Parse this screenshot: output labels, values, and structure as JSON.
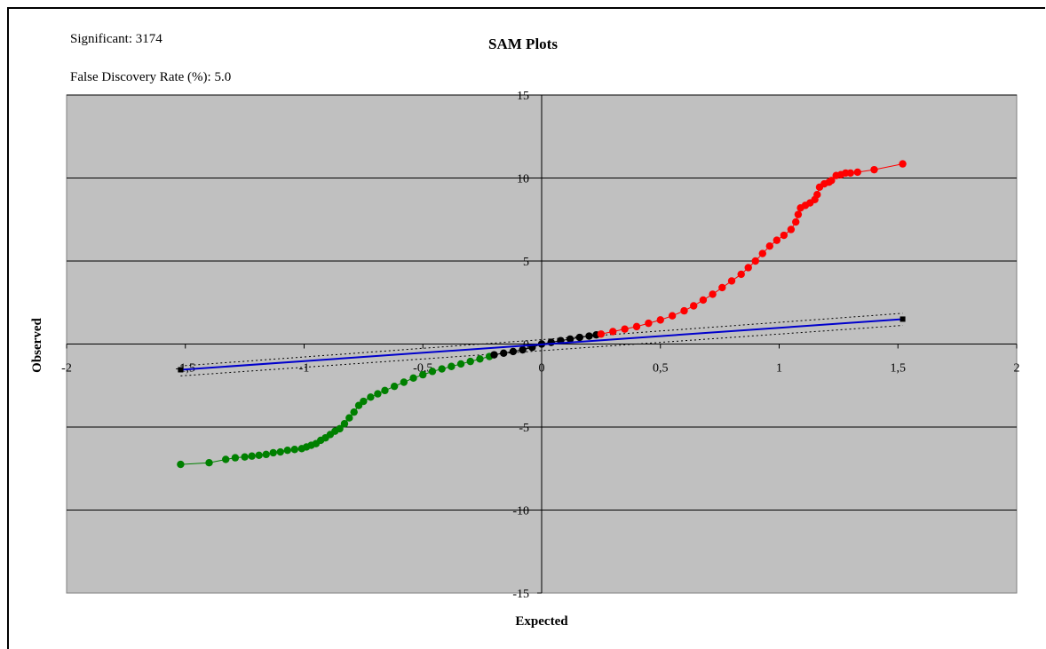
{
  "info": {
    "significant": "Significant: 3174",
    "fdr": "False Discovery Rate (%): 5.0"
  },
  "chart_data": {
    "type": "scatter",
    "title": "SAM Plots",
    "xlabel": "Expected",
    "ylabel": "Observed",
    "xlim": [
      -2,
      2
    ],
    "ylim": [
      -15,
      15
    ],
    "x_ticks": [
      "-2",
      "-1,5",
      "-1",
      "-0,5",
      "0",
      "0,5",
      "1",
      "1,5",
      "2"
    ],
    "y_ticks": [
      "15",
      "10",
      "5",
      "0",
      "-5",
      "-10",
      "-15"
    ],
    "grid": "horizontal",
    "background": "#c0c0c0",
    "series": [
      {
        "color": "#008000",
        "points": [
          [
            -1.52,
            -7.25
          ],
          [
            -1.4,
            -7.15
          ],
          [
            -1.33,
            -6.95
          ],
          [
            -1.29,
            -6.85
          ],
          [
            -1.25,
            -6.8
          ],
          [
            -1.22,
            -6.75
          ],
          [
            -1.19,
            -6.7
          ],
          [
            -1.16,
            -6.65
          ],
          [
            -1.13,
            -6.55
          ],
          [
            -1.1,
            -6.5
          ],
          [
            -1.07,
            -6.4
          ],
          [
            -1.04,
            -6.35
          ],
          [
            -1.01,
            -6.3
          ],
          [
            -0.99,
            -6.2
          ],
          [
            -0.97,
            -6.1
          ],
          [
            -0.95,
            -6.0
          ],
          [
            -0.93,
            -5.8
          ],
          [
            -0.91,
            -5.65
          ],
          [
            -0.89,
            -5.45
          ],
          [
            -0.87,
            -5.25
          ],
          [
            -0.85,
            -5.1
          ],
          [
            -0.83,
            -4.8
          ],
          [
            -0.81,
            -4.45
          ],
          [
            -0.79,
            -4.1
          ],
          [
            -0.77,
            -3.7
          ],
          [
            -0.75,
            -3.45
          ],
          [
            -0.72,
            -3.2
          ],
          [
            -0.69,
            -3.0
          ],
          [
            -0.66,
            -2.8
          ],
          [
            -0.62,
            -2.55
          ],
          [
            -0.58,
            -2.3
          ],
          [
            -0.54,
            -2.05
          ],
          [
            -0.5,
            -1.85
          ],
          [
            -0.46,
            -1.65
          ],
          [
            -0.42,
            -1.5
          ],
          [
            -0.38,
            -1.35
          ],
          [
            -0.34,
            -1.2
          ],
          [
            -0.3,
            -1.05
          ],
          [
            -0.26,
            -0.9
          ],
          [
            -0.22,
            -0.75
          ]
        ]
      },
      {
        "color": "#000000",
        "points": [
          [
            -0.2,
            -0.65
          ],
          [
            -0.16,
            -0.55
          ],
          [
            -0.12,
            -0.45
          ],
          [
            -0.08,
            -0.35
          ],
          [
            -0.04,
            -0.2
          ],
          [
            0.0,
            0.0
          ],
          [
            0.04,
            0.1
          ],
          [
            0.08,
            0.2
          ],
          [
            0.12,
            0.3
          ],
          [
            0.16,
            0.4
          ],
          [
            0.2,
            0.48
          ],
          [
            0.23,
            0.55
          ]
        ]
      },
      {
        "color": "#ff0000",
        "points": [
          [
            0.25,
            0.6
          ],
          [
            0.3,
            0.75
          ],
          [
            0.35,
            0.9
          ],
          [
            0.4,
            1.05
          ],
          [
            0.45,
            1.25
          ],
          [
            0.5,
            1.45
          ],
          [
            0.55,
            1.7
          ],
          [
            0.6,
            2.0
          ],
          [
            0.64,
            2.3
          ],
          [
            0.68,
            2.65
          ],
          [
            0.72,
            3.0
          ],
          [
            0.76,
            3.4
          ],
          [
            0.8,
            3.8
          ],
          [
            0.84,
            4.2
          ],
          [
            0.87,
            4.6
          ],
          [
            0.9,
            5.0
          ],
          [
            0.93,
            5.45
          ],
          [
            0.96,
            5.9
          ],
          [
            0.99,
            6.25
          ],
          [
            1.02,
            6.55
          ],
          [
            1.05,
            6.9
          ],
          [
            1.07,
            7.35
          ],
          [
            1.08,
            7.8
          ],
          [
            1.09,
            8.2
          ],
          [
            1.11,
            8.35
          ],
          [
            1.13,
            8.5
          ],
          [
            1.15,
            8.7
          ],
          [
            1.16,
            9.0
          ],
          [
            1.17,
            9.45
          ],
          [
            1.19,
            9.65
          ],
          [
            1.21,
            9.75
          ],
          [
            1.22,
            9.85
          ],
          [
            1.24,
            10.15
          ],
          [
            1.26,
            10.2
          ],
          [
            1.28,
            10.3
          ],
          [
            1.3,
            10.3
          ],
          [
            1.33,
            10.35
          ],
          [
            1.4,
            10.5
          ],
          [
            1.52,
            10.85
          ]
        ]
      }
    ],
    "reference_line": {
      "color": "#0000cc",
      "from": [
        -1.52,
        -1.55
      ],
      "to": [
        1.52,
        1.5
      ]
    },
    "band_upper": {
      "from": [
        -1.52,
        -1.32
      ],
      "to": [
        1.52,
        1.85
      ]
    },
    "band_lower": {
      "from": [
        -1.52,
        -1.92
      ],
      "to": [
        1.52,
        1.12
      ]
    }
  }
}
